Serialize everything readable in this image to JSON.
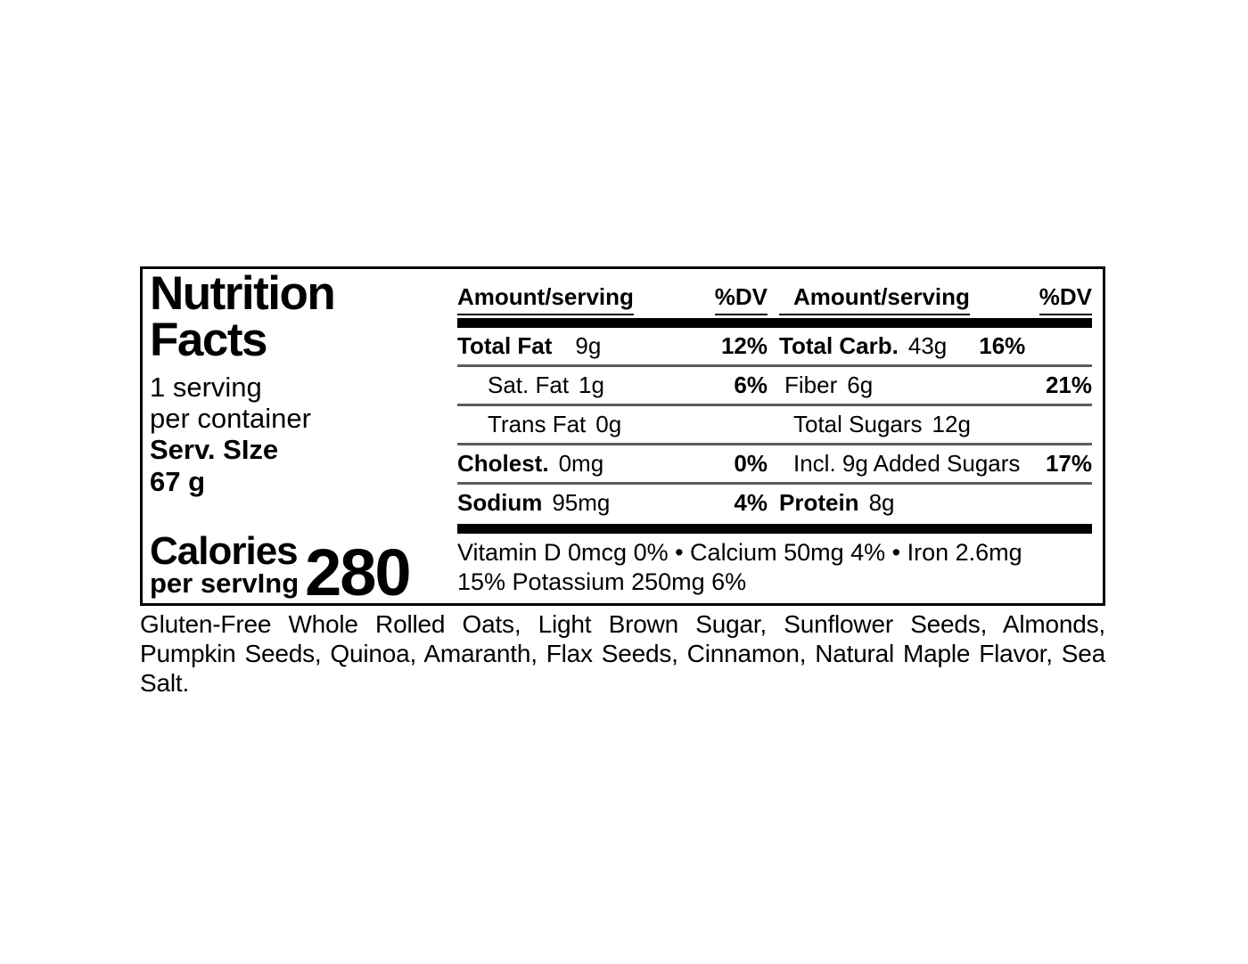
{
  "label": {
    "title": [
      "Nutrition",
      "Facts"
    ],
    "servings": [
      "1 serving",
      "per container"
    ],
    "serving_size": [
      "Serv. SIze",
      "67 g"
    ],
    "calories": {
      "label": "Calories",
      "sub": "per servIng",
      "value": "280"
    },
    "header": {
      "amount": "Amount/serving",
      "dv": "%DV"
    },
    "rows": [
      {
        "left": {
          "name": "Total Fat",
          "amount": "9g",
          "dv": "12%"
        },
        "right": {
          "name": "Total Carb.",
          "amount": "43g",
          "dv": "16%"
        }
      },
      {
        "left": {
          "name": "Sat. Fat",
          "amount": "1g",
          "dv": "6%"
        },
        "right": {
          "name": "Fiber",
          "amount": "6g",
          "dv": "21%"
        }
      },
      {
        "left": {
          "name": "Trans Fat",
          "amount": "0g",
          "dv": ""
        },
        "right": {
          "name": "Total Sugars",
          "amount": "12g",
          "dv": ""
        }
      },
      {
        "left": {
          "name": "Cholest.",
          "amount": "0mg",
          "dv": "0%"
        },
        "right": {
          "name": "Incl. 9g Added Sugars",
          "amount": "",
          "dv": "17%"
        }
      },
      {
        "left": {
          "name": "Sodium",
          "amount": "95mg",
          "dv": "4%"
        },
        "right": {
          "name": "Protein",
          "amount": "8g",
          "dv": ""
        }
      }
    ],
    "vitamins": [
      "Vitamin D 0mcg 0% • Calcium 50mg 4% • Iron 2.6mg",
      "15% Potassium 250mg 6%"
    ]
  },
  "ingredients": "Gluten-Free Whole Rolled Oats, Light Brown Sugar, Sunflower Seeds, Almonds, Pumpkin Seeds, Quinoa, Amaranth, Flax Seeds, Cinnamon, Natural Maple Flavor, Sea Salt.",
  "colors": {
    "text": "#000000",
    "separator": "#5c5c5c",
    "background": "#ffffff"
  }
}
